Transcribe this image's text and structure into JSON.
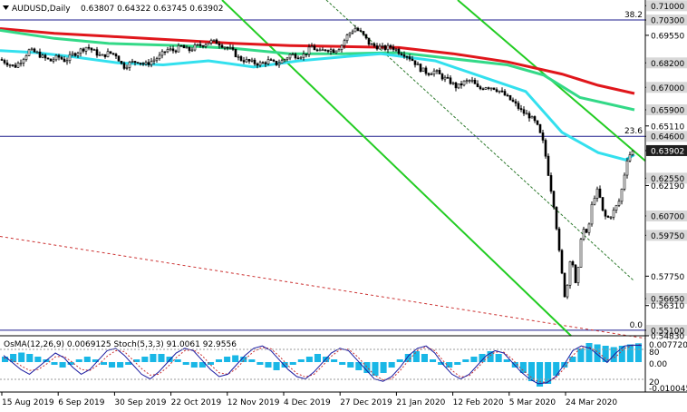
{
  "header": {
    "symbol_label": "AUDUSD,Daily",
    "ohlc_label": "0.63807 0.64322 0.63745 0.63902"
  },
  "oscillator": {
    "label": "OsMA(12,26,9) 0.0069125  Stoch(5,3,3) 91.0061 92.9556",
    "scale_labels": [
      "0.0077201",
      "80",
      "0.00",
      "20",
      "-0.010045"
    ]
  },
  "colors": {
    "candles": "#000000",
    "ema_fast": "#33e0ee",
    "ema_mid": "#33d987",
    "ema_slow": "#e0161b",
    "channel_upper": "#22cc22",
    "channel_lower": "#22cc22",
    "channel_mid": "#2d7a2d",
    "long_trend": "#cc3333",
    "horizontal_levels": "#1c1c8c",
    "histogram": "#19b7e6",
    "stoch_main": "#1a1aa0",
    "stoch_signal": "#cc3333",
    "current_price_tag": "#1e1e1e"
  },
  "chart_data": {
    "type": "candlestick",
    "symbol": "AUDUSD",
    "timeframe": "Daily",
    "y_axis": {
      "ylim": [
        0.5483,
        0.7128
      ],
      "tick_labels": [
        "0.71000",
        "0.70300",
        "0.69550",
        "0.68200",
        "0.67000",
        "0.65900",
        "0.65110",
        "0.64600",
        "0.63902",
        "0.62550",
        "0.62190",
        "0.60700",
        "0.59750",
        "0.57750",
        "0.56650",
        "0.56310",
        "0.55100",
        "0.54830"
      ],
      "highlighted_labels": [
        "0.71000",
        "0.70300",
        "0.68200",
        "0.67000",
        "0.65900",
        "0.64600",
        "0.62550",
        "0.60700",
        "0.59750",
        "0.56650",
        "0.55100"
      ],
      "current_price_label": "0.63902"
    },
    "x_axis": {
      "tick_labels": [
        "15 Aug 2019",
        "6 Sep 2019",
        "30 Sep 2019",
        "22 Oct 2019",
        "12 Nov 2019",
        "4 Dec 2019",
        "27 Dec 2019",
        "21 Jan 2020",
        "12 Feb 2020",
        "5 Mar 2020",
        "24 Mar 2020"
      ]
    },
    "fibonacci": [
      {
        "label": "38.2",
        "price": 0.703
      },
      {
        "label": "23.6",
        "price": 0.646
      },
      {
        "label": "0.0",
        "price": 0.551
      }
    ],
    "horizontal_levels": [
      0.703,
      0.646,
      0.551
    ],
    "price_path": [
      [
        0,
        0.6837
      ],
      [
        8,
        0.682
      ],
      [
        16,
        0.68
      ],
      [
        24,
        0.6835
      ],
      [
        32,
        0.688
      ],
      [
        40,
        0.687
      ],
      [
        48,
        0.6845
      ],
      [
        56,
        0.683
      ],
      [
        64,
        0.685
      ],
      [
        72,
        0.683
      ],
      [
        80,
        0.686
      ],
      [
        88,
        0.688
      ],
      [
        96,
        0.69
      ],
      [
        104,
        0.6875
      ],
      [
        112,
        0.685
      ],
      [
        120,
        0.687
      ],
      [
        128,
        0.686
      ],
      [
        136,
        0.68
      ],
      [
        144,
        0.682
      ],
      [
        152,
        0.683
      ],
      [
        160,
        0.681
      ],
      [
        168,
        0.683
      ],
      [
        176,
        0.685
      ],
      [
        184,
        0.6885
      ],
      [
        192,
        0.688
      ],
      [
        200,
        0.69
      ],
      [
        208,
        0.688
      ],
      [
        216,
        0.69
      ],
      [
        224,
        0.691
      ],
      [
        232,
        0.6925
      ],
      [
        240,
        0.692
      ],
      [
        248,
        0.69
      ],
      [
        256,
        0.688
      ],
      [
        264,
        0.684
      ],
      [
        272,
        0.683
      ],
      [
        280,
        0.682
      ],
      [
        288,
        0.6815
      ],
      [
        296,
        0.683
      ],
      [
        304,
        0.6815
      ],
      [
        312,
        0.683
      ],
      [
        320,
        0.686
      ],
      [
        328,
        0.6855
      ],
      [
        336,
        0.686
      ],
      [
        344,
        0.69
      ],
      [
        352,
        0.687
      ],
      [
        360,
        0.689
      ],
      [
        368,
        0.688
      ],
      [
        376,
        0.69
      ],
      [
        384,
        0.696
      ],
      [
        392,
        0.699
      ],
      [
        400,
        0.696
      ],
      [
        408,
        0.691
      ],
      [
        416,
        0.69
      ],
      [
        424,
        0.689
      ],
      [
        432,
        0.69
      ],
      [
        440,
        0.6875
      ],
      [
        448,
        0.686
      ],
      [
        456,
        0.683
      ],
      [
        464,
        0.679
      ],
      [
        472,
        0.677
      ],
      [
        480,
        0.678
      ],
      [
        488,
        0.675
      ],
      [
        496,
        0.673
      ],
      [
        504,
        0.67
      ],
      [
        512,
        0.6725
      ],
      [
        520,
        0.6735
      ],
      [
        528,
        0.669
      ],
      [
        536,
        0.6705
      ],
      [
        544,
        0.67
      ],
      [
        552,
        0.668
      ],
      [
        560,
        0.665
      ],
      [
        568,
        0.662
      ],
      [
        576,
        0.658
      ],
      [
        584,
        0.656
      ],
      [
        592,
        0.652
      ],
      [
        600,
        0.642
      ],
      [
        606,
        0.625
      ],
      [
        612,
        0.61
      ],
      [
        618,
        0.585
      ],
      [
        624,
        0.565
      ],
      [
        630,
        0.59
      ],
      [
        636,
        0.57
      ],
      [
        642,
        0.602
      ],
      [
        648,
        0.597
      ],
      [
        654,
        0.615
      ],
      [
        660,
        0.62
      ],
      [
        666,
        0.607
      ],
      [
        672,
        0.606
      ],
      [
        678,
        0.61
      ],
      [
        684,
        0.615
      ],
      [
        688,
        0.625
      ],
      [
        692,
        0.635
      ],
      [
        696,
        0.638
      ],
      [
        700,
        0.639
      ]
    ],
    "moving_averages": [
      {
        "color": "#e0161b",
        "points": [
          [
            0,
            0.6988
          ],
          [
            60,
            0.6965
          ],
          [
            120,
            0.695
          ],
          [
            200,
            0.693
          ],
          [
            260,
            0.6915
          ],
          [
            320,
            0.6905
          ],
          [
            380,
            0.69
          ],
          [
            440,
            0.6895
          ],
          [
            500,
            0.6865
          ],
          [
            560,
            0.6825
          ],
          [
            620,
            0.6765
          ],
          [
            660,
            0.671
          ],
          [
            700,
            0.667
          ]
        ]
      },
      {
        "color": "#33d987",
        "points": [
          [
            0,
            0.698
          ],
          [
            60,
            0.694
          ],
          [
            120,
            0.6915
          ],
          [
            200,
            0.6905
          ],
          [
            260,
            0.689
          ],
          [
            320,
            0.6865
          ],
          [
            380,
            0.6865
          ],
          [
            440,
            0.687
          ],
          [
            500,
            0.684
          ],
          [
            560,
            0.681
          ],
          [
            600,
            0.676
          ],
          [
            640,
            0.665
          ],
          [
            700,
            0.659
          ]
        ]
      },
      {
        "color": "#33e0ee",
        "points": [
          [
            0,
            0.688
          ],
          [
            40,
            0.687
          ],
          [
            80,
            0.685
          ],
          [
            130,
            0.682
          ],
          [
            180,
            0.681
          ],
          [
            230,
            0.683
          ],
          [
            280,
            0.68
          ],
          [
            330,
            0.683
          ],
          [
            380,
            0.685
          ],
          [
            420,
            0.6865
          ],
          [
            480,
            0.683
          ],
          [
            540,
            0.674
          ],
          [
            580,
            0.668
          ],
          [
            620,
            0.648
          ],
          [
            660,
            0.638
          ],
          [
            690,
            0.6345
          ],
          [
            700,
            0.637
          ]
        ]
      }
    ],
    "channel_lines": [
      {
        "points": [
          [
            245,
            0.7128
          ],
          [
            630,
            0.5483
          ]
        ]
      },
      {
        "points": [
          [
            505,
            0.7128
          ],
          [
            712,
            0.634
          ]
        ]
      },
      {
        "points": [
          [
            360,
            0.7128
          ],
          [
            700,
            0.575
          ]
        ]
      }
    ],
    "long_trend_line": [
      [
        0,
        0.597
      ],
      [
        712,
        0.547
      ]
    ],
    "osma_histogram": [
      0.002,
      0.003,
      0.0035,
      0.003,
      0.002,
      0.001,
      -0.001,
      -0.002,
      -0.001,
      0.001,
      0.002,
      0.001,
      -0.001,
      -0.002,
      -0.002,
      -0.001,
      0.001,
      0.002,
      0.003,
      0.003,
      0.002,
      0.001,
      -0.001,
      -0.002,
      -0.002,
      -0.001,
      0.001,
      0.002,
      0.0025,
      0.002,
      0.001,
      -0.001,
      -0.002,
      -0.003,
      -0.002,
      -0.001,
      0.001,
      0.002,
      0.003,
      0.002,
      0.001,
      -0.001,
      -0.002,
      -0.003,
      -0.004,
      -0.005,
      -0.004,
      -0.002,
      0.001,
      0.003,
      0.004,
      0.003,
      0.001,
      -0.001,
      -0.002,
      -0.001,
      0.001,
      0.002,
      0.003,
      0.004,
      0.003,
      0.001,
      -0.002,
      -0.004,
      -0.007,
      -0.009,
      -0.008,
      -0.005,
      -0.002,
      0.002,
      0.005,
      0.007,
      0.0065,
      0.006,
      0.0055,
      0.006,
      0.0065,
      0.0069
    ],
    "stoch_main": [
      70,
      55,
      40,
      30,
      45,
      60,
      75,
      65,
      45,
      30,
      40,
      60,
      80,
      85,
      70,
      50,
      30,
      20,
      35,
      55,
      75,
      85,
      80,
      60,
      40,
      25,
      30,
      50,
      70,
      85,
      90,
      80,
      60,
      40,
      25,
      20,
      35,
      55,
      75,
      85,
      80,
      60,
      40,
      20,
      15,
      25,
      45,
      70,
      85,
      90,
      75,
      50,
      30,
      20,
      30,
      50,
      70,
      80,
      75,
      55,
      35,
      20,
      10,
      12,
      25,
      50,
      80,
      90,
      85,
      70,
      55,
      75,
      90,
      92,
      91
    ],
    "stoch_signal": [
      65,
      60,
      48,
      38,
      40,
      52,
      67,
      68,
      55,
      40,
      38,
      50,
      68,
      80,
      78,
      60,
      42,
      28,
      30,
      45,
      65,
      80,
      82,
      70,
      50,
      33,
      30,
      42,
      62,
      78,
      87,
      84,
      68,
      48,
      32,
      24,
      30,
      48,
      68,
      82,
      83,
      68,
      48,
      28,
      18,
      20,
      38,
      60,
      80,
      88,
      80,
      58,
      38,
      24,
      27,
      44,
      64,
      77,
      77,
      62,
      42,
      26,
      14,
      13,
      22,
      42,
      70,
      86,
      87,
      76,
      60,
      67,
      85,
      91,
      93
    ]
  }
}
